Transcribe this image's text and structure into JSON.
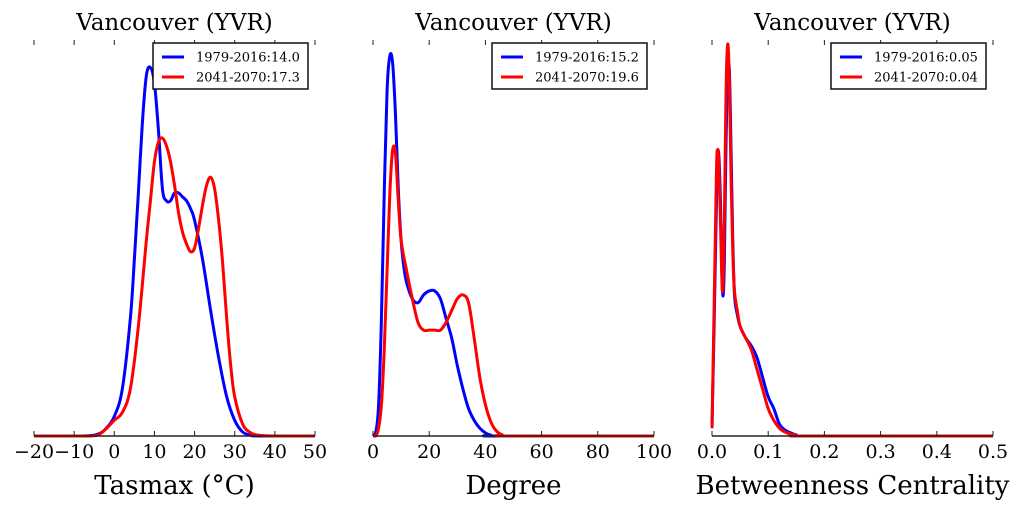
{
  "chart_data": [
    {
      "type": "line",
      "title": "Vancouver (YVR)",
      "xlabel": "Tasmax ($^\\circ$C)",
      "xlabel_display": "Tasmax (°C)",
      "ylabel": "",
      "xlim": [
        -20,
        50
      ],
      "ylim": [
        0,
        1
      ],
      "xticks": [
        "−20",
        "−10",
        "0",
        "10",
        "20",
        "30",
        "40",
        "50"
      ],
      "xtick_values": [
        -20,
        -10,
        0,
        10,
        20,
        30,
        40,
        50
      ],
      "legend_position": "top-right",
      "series": [
        {
          "name": "1979-2016:14.0",
          "color": "#0000ff",
          "x": [
            -20,
            -8,
            -4,
            -2,
            0,
            2,
            4,
            5,
            6,
            7,
            8,
            9,
            10,
            11,
            12,
            13,
            14,
            15,
            16,
            17,
            18,
            19,
            20,
            22,
            24,
            26,
            28,
            30,
            32,
            34,
            36,
            50
          ],
          "y": [
            0,
            0,
            0.005,
            0.02,
            0.05,
            0.12,
            0.3,
            0.45,
            0.62,
            0.8,
            0.92,
            0.94,
            0.9,
            0.78,
            0.63,
            0.6,
            0.6,
            0.62,
            0.62,
            0.61,
            0.6,
            0.58,
            0.55,
            0.45,
            0.32,
            0.2,
            0.1,
            0.04,
            0.01,
            0.002,
            0,
            0
          ]
        },
        {
          "name": "2041-2070:17.3",
          "color": "#ff0000",
          "x": [
            -20,
            -6,
            -3,
            0,
            2,
            4,
            6,
            8,
            9,
            10,
            11,
            12,
            13,
            14,
            15,
            16,
            17,
            18,
            19,
            20,
            21,
            22,
            23,
            24,
            25,
            26,
            27,
            28,
            29,
            30,
            32,
            34,
            36,
            40,
            50
          ],
          "y": [
            0,
            0,
            0.01,
            0.04,
            0.06,
            0.12,
            0.28,
            0.5,
            0.6,
            0.7,
            0.75,
            0.76,
            0.74,
            0.7,
            0.64,
            0.57,
            0.52,
            0.49,
            0.47,
            0.48,
            0.53,
            0.59,
            0.64,
            0.66,
            0.63,
            0.55,
            0.44,
            0.3,
            0.18,
            0.1,
            0.03,
            0.008,
            0.002,
            0,
            0
          ]
        }
      ]
    },
    {
      "type": "line",
      "title": "Vancouver (YVR)",
      "xlabel": "Degree",
      "xlabel_display": "Degree",
      "ylabel": "",
      "xlim": [
        0,
        100
      ],
      "ylim": [
        0,
        1
      ],
      "xticks": [
        "0",
        "20",
        "40",
        "60",
        "80",
        "100"
      ],
      "xtick_values": [
        0,
        20,
        40,
        60,
        80,
        100
      ],
      "legend_position": "top-right",
      "series": [
        {
          "name": "1979-2016:15.2",
          "color": "#0000ff",
          "x": [
            0,
            1,
            2,
            3,
            4,
            5,
            6,
            7,
            8,
            9,
            10,
            11,
            12,
            14,
            16,
            18,
            20,
            22,
            24,
            26,
            28,
            30,
            32,
            34,
            36,
            38,
            40,
            42,
            44,
            100
          ],
          "y": [
            0,
            0.01,
            0.08,
            0.3,
            0.62,
            0.88,
            0.97,
            0.95,
            0.82,
            0.63,
            0.5,
            0.43,
            0.39,
            0.35,
            0.34,
            0.36,
            0.37,
            0.37,
            0.35,
            0.3,
            0.25,
            0.18,
            0.12,
            0.07,
            0.04,
            0.02,
            0.008,
            0.002,
            0,
            0
          ]
        },
        {
          "name": "2041-2070:19.6",
          "color": "#ff0000",
          "x": [
            0,
            1,
            2,
            3,
            4,
            5,
            6,
            7,
            8,
            9,
            10,
            12,
            14,
            16,
            18,
            20,
            22,
            24,
            26,
            28,
            30,
            32,
            34,
            36,
            38,
            40,
            42,
            44,
            46,
            48,
            100
          ],
          "y": [
            0,
            0,
            0.02,
            0.08,
            0.22,
            0.42,
            0.62,
            0.73,
            0.72,
            0.6,
            0.5,
            0.42,
            0.35,
            0.29,
            0.27,
            0.27,
            0.27,
            0.27,
            0.29,
            0.32,
            0.35,
            0.36,
            0.34,
            0.25,
            0.15,
            0.08,
            0.035,
            0.012,
            0.003,
            0,
            0
          ]
        }
      ]
    },
    {
      "type": "line",
      "title": "Vancouver (YVR)",
      "xlabel": "Betweenness Centrality",
      "xlabel_display": "Betweenness Centrality",
      "ylabel": "",
      "xlim": [
        0.0,
        0.5
      ],
      "ylim": [
        0,
        1
      ],
      "xticks": [
        "0.0",
        "0.1",
        "0.2",
        "0.3",
        "0.4",
        "0.5"
      ],
      "xtick_values": [
        0.0,
        0.1,
        0.2,
        0.3,
        0.4,
        0.5
      ],
      "legend_position": "top-right",
      "series": [
        {
          "name": "1979-2016:0.05",
          "color": "#0000ff",
          "x": [
            0,
            0.004,
            0.008,
            0.01,
            0.012,
            0.015,
            0.018,
            0.02,
            0.022,
            0.025,
            0.028,
            0.031,
            0.034,
            0.037,
            0.04,
            0.045,
            0.05,
            0.06,
            0.07,
            0.08,
            0.09,
            0.1,
            0.11,
            0.12,
            0.13,
            0.14,
            0.15,
            0.17,
            0.5
          ],
          "y": [
            0.02,
            0.3,
            0.6,
            0.7,
            0.72,
            0.6,
            0.4,
            0.36,
            0.45,
            0.75,
            0.92,
            0.93,
            0.72,
            0.5,
            0.36,
            0.31,
            0.28,
            0.25,
            0.23,
            0.2,
            0.15,
            0.1,
            0.07,
            0.03,
            0.015,
            0.008,
            0.003,
            0,
            0
          ]
        },
        {
          "name": "2041-2070:0.04",
          "color": "#ff0000",
          "x": [
            0,
            0.004,
            0.008,
            0.01,
            0.012,
            0.015,
            0.018,
            0.02,
            0.022,
            0.025,
            0.028,
            0.031,
            0.034,
            0.037,
            0.04,
            0.045,
            0.05,
            0.06,
            0.07,
            0.08,
            0.09,
            0.1,
            0.11,
            0.12,
            0.13,
            0.14,
            0.15,
            0.17,
            0.5
          ],
          "y": [
            0.02,
            0.35,
            0.68,
            0.73,
            0.7,
            0.55,
            0.38,
            0.4,
            0.55,
            0.88,
            1.0,
            0.9,
            0.65,
            0.47,
            0.37,
            0.32,
            0.28,
            0.25,
            0.22,
            0.17,
            0.12,
            0.07,
            0.04,
            0.02,
            0.01,
            0.005,
            0.002,
            0,
            0
          ]
        }
      ]
    }
  ]
}
